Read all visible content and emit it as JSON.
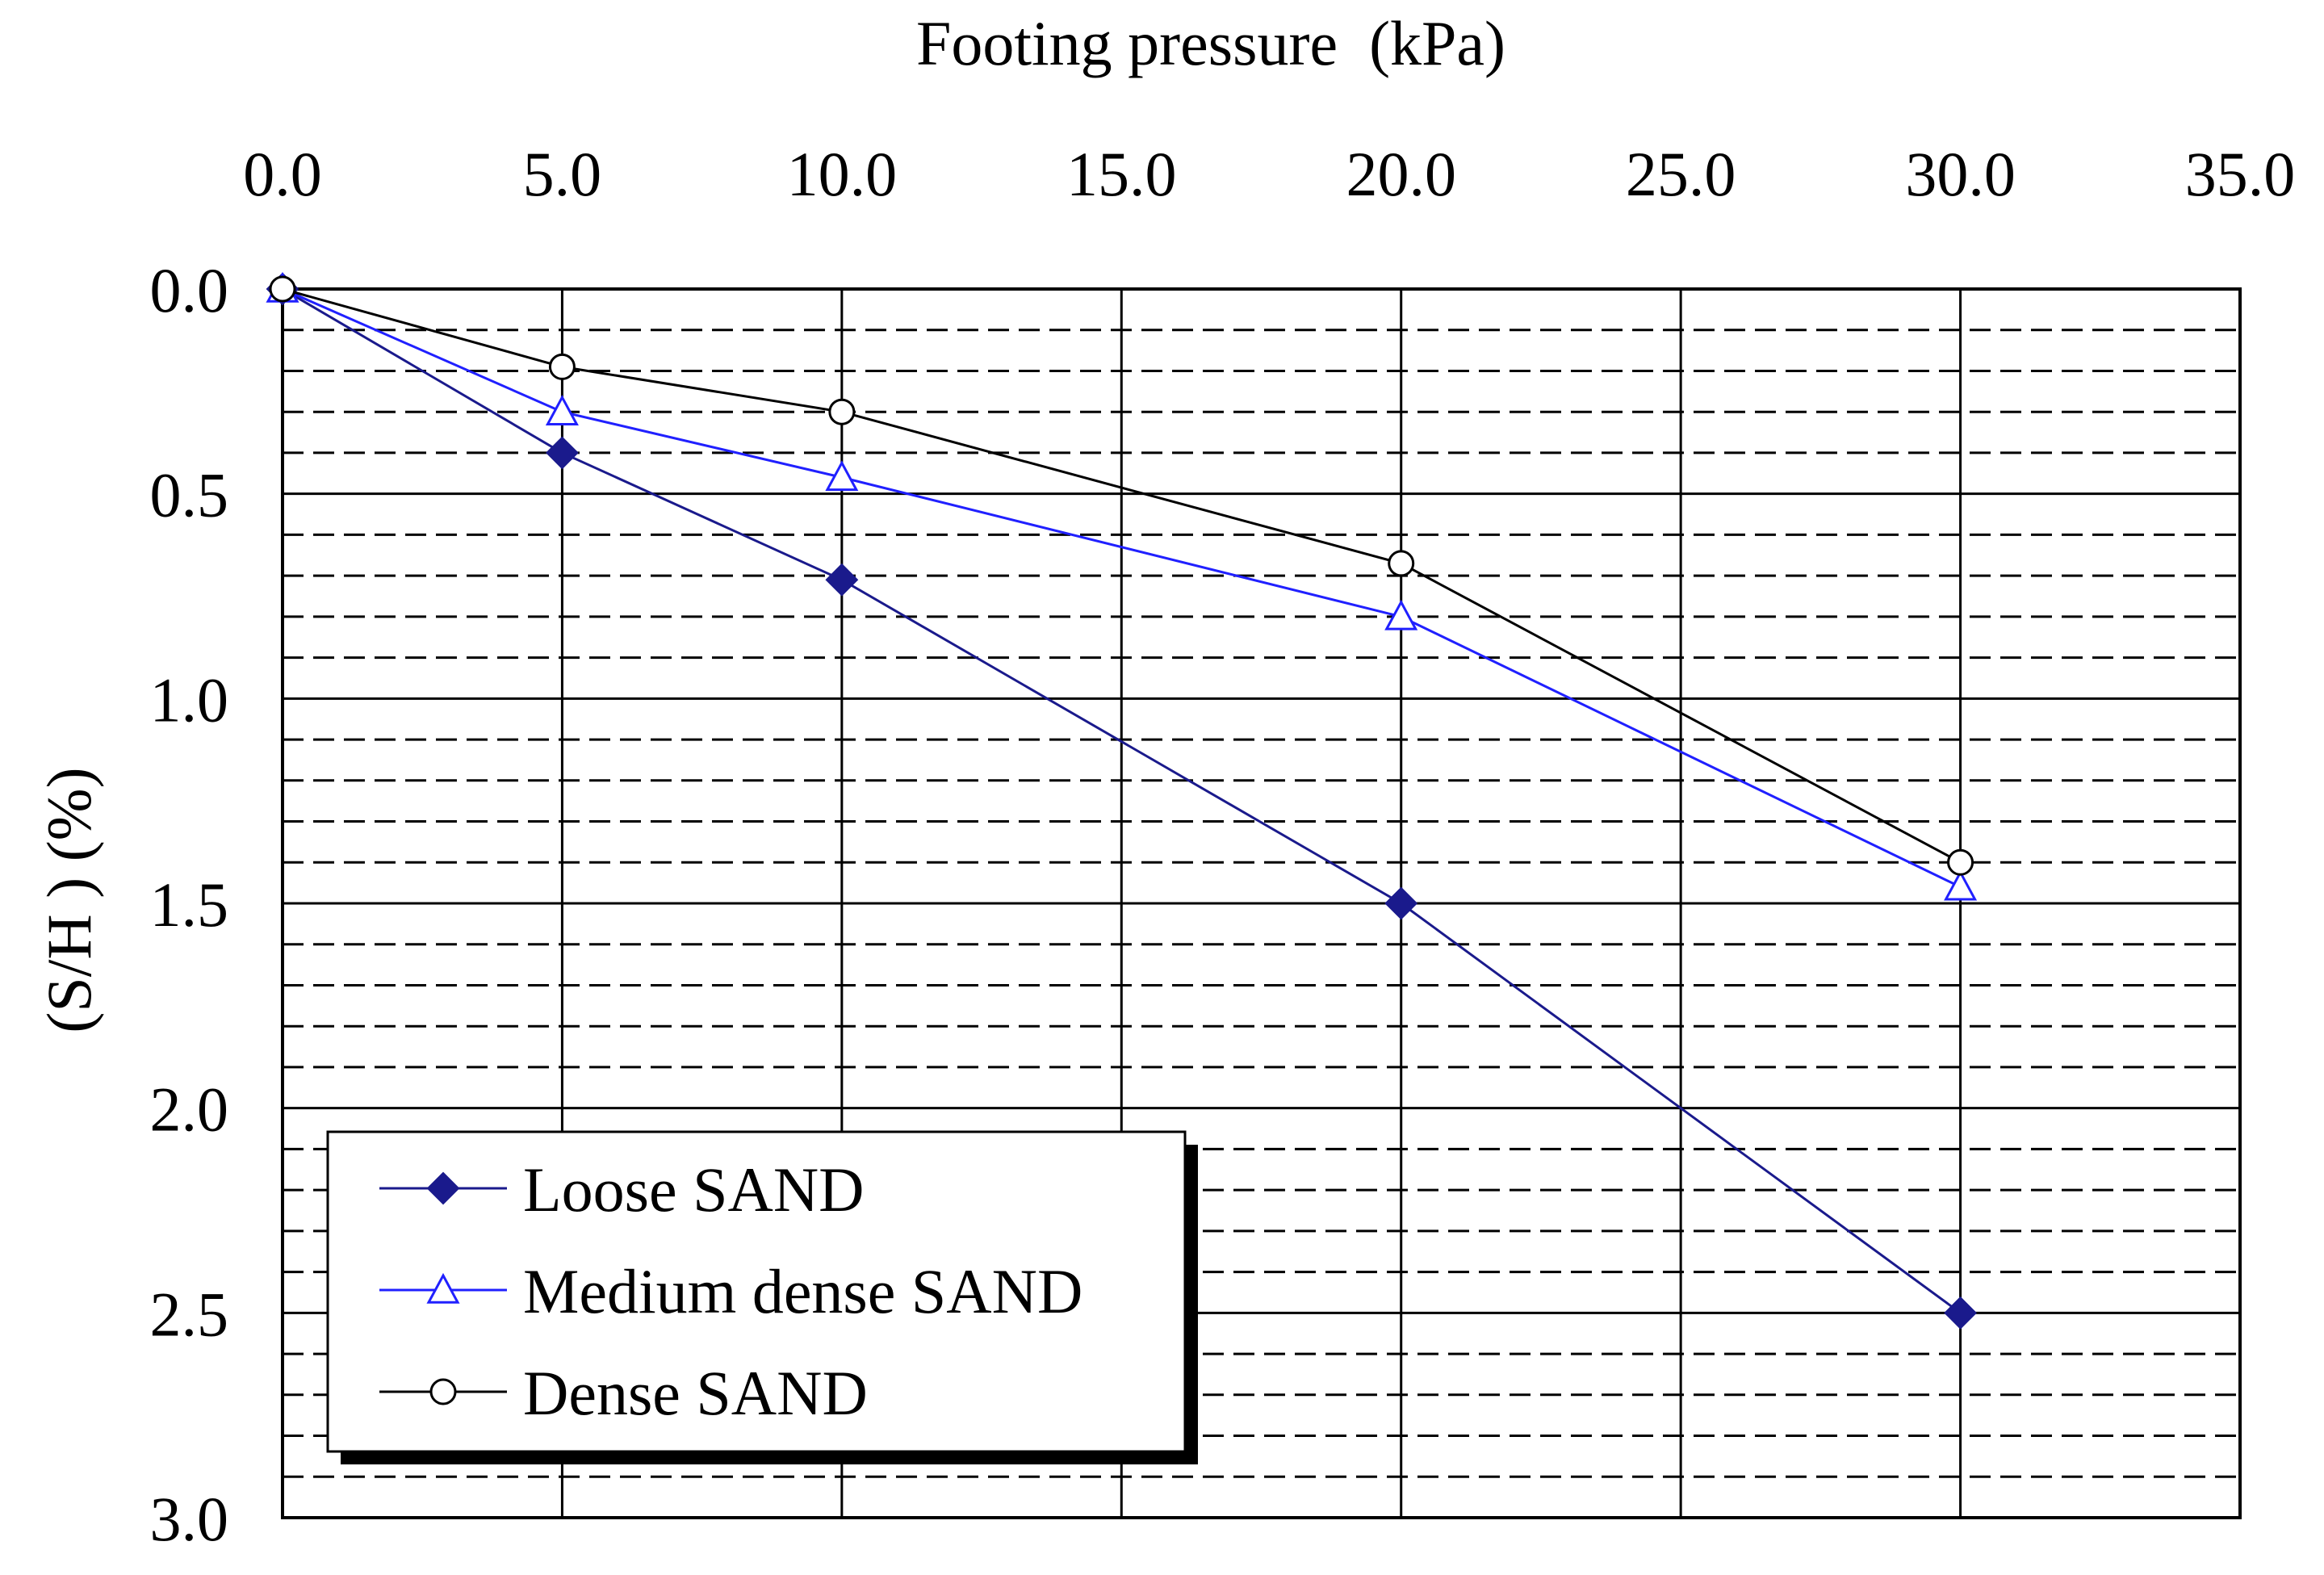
{
  "chart_data": {
    "type": "line",
    "title": "",
    "xlabel": "Footing pressure  (kPa)",
    "ylabel": "(S/H ) (%)",
    "xlim": [
      0,
      35
    ],
    "ylim": [
      0,
      3
    ],
    "y_inverted": true,
    "x_axis_position": "top",
    "x_ticks": [
      "0.0",
      "5.0",
      "10.0",
      "15.0",
      "20.0",
      "25.0",
      "30.0",
      "35.0"
    ],
    "y_ticks": [
      "0.0",
      "0.5",
      "1.0",
      "1.5",
      "2.0",
      "2.5",
      "3.0"
    ],
    "grid": {
      "major": "solid",
      "minor": "dashed"
    },
    "legend_position": "bottom-left",
    "series": [
      {
        "name": "Loose SAND",
        "marker": "filled-diamond",
        "color": "#1a1a8c",
        "x": [
          0,
          5,
          10,
          20,
          30
        ],
        "y": [
          0,
          0.4,
          0.71,
          1.5,
          2.5
        ]
      },
      {
        "name": "Medium dense SAND",
        "marker": "open-triangle",
        "color": "#2020ff",
        "x": [
          0,
          5,
          10,
          20,
          30
        ],
        "y": [
          0,
          0.3,
          0.46,
          0.8,
          1.46
        ]
      },
      {
        "name": "Dense SAND",
        "marker": "open-circle",
        "color": "#000000",
        "x": [
          0,
          5,
          10,
          20,
          30
        ],
        "y": [
          0,
          0.19,
          0.3,
          0.67,
          1.4
        ]
      }
    ]
  }
}
